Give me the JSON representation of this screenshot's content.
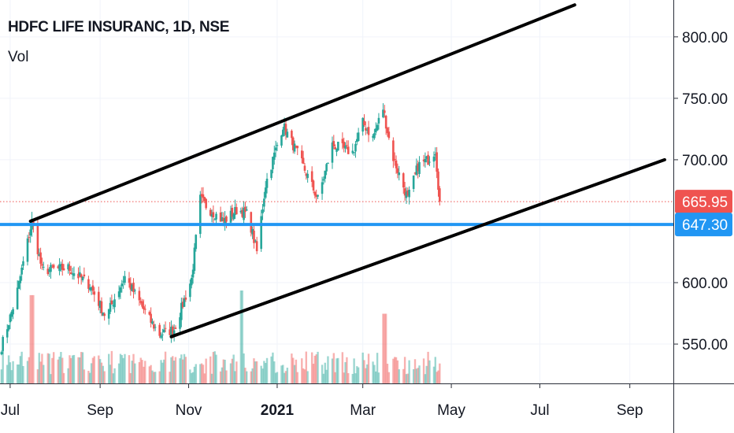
{
  "header": {
    "title": "HDFC LIFE INSURANC, 1D, NSE",
    "volume_label": "Vol"
  },
  "colors": {
    "up": "#26a69a",
    "down": "#ef5350",
    "grid": "#f0f3fa",
    "axis_text": "#131722",
    "last_price_badge": "#ef5350",
    "horizontal_line": "#2196f3",
    "trendline": "#000000"
  },
  "chart_data": {
    "type": "candlestick",
    "title": "HDFC LIFE INSURANC, 1D, NSE",
    "y_ticks": [
      "800.00",
      "750.00",
      "700.00",
      "600.00",
      "550.00"
    ],
    "y_range": [
      518,
      830
    ],
    "x_ticks": [
      "Jul",
      "Sep",
      "Nov",
      "2021",
      "Mar",
      "May",
      "Jul",
      "Sep"
    ],
    "x_tick_dates": [
      "2020-07-01",
      "2020-09-01",
      "2020-11-01",
      "2021-01-01",
      "2021-03-01",
      "2021-05-01",
      "2021-07-01",
      "2021-09-01"
    ],
    "x_range": [
      "2020-06-24",
      "2021-10-01"
    ],
    "last_price": {
      "value": 665.95,
      "label": "665.95"
    },
    "horizontal_level": {
      "value": 647.3,
      "label": "647.30"
    },
    "trendlines": [
      {
        "from": {
          "date": "2020-07-15",
          "value": 650
        },
        "to": {
          "date": "2021-07-25",
          "value": 826
        }
      },
      {
        "from": {
          "date": "2020-10-20",
          "value": 556
        },
        "to": {
          "date": "2021-09-25",
          "value": 700
        }
      }
    ],
    "price_path": [
      [
        "2020-06-25",
        548
      ],
      [
        "2020-07-05",
        588
      ],
      [
        "2020-07-16",
        650
      ],
      [
        "2020-07-23",
        610
      ],
      [
        "2020-08-10",
        612
      ],
      [
        "2020-08-25",
        598
      ],
      [
        "2020-09-05",
        572
      ],
      [
        "2020-09-18",
        605
      ],
      [
        "2020-10-05",
        570
      ],
      [
        "2020-10-12",
        558
      ],
      [
        "2020-10-22",
        562
      ],
      [
        "2020-11-03",
        603
      ],
      [
        "2020-11-09",
        668
      ],
      [
        "2020-11-15",
        660
      ],
      [
        "2020-11-25",
        650
      ],
      [
        "2020-12-05",
        660
      ],
      [
        "2020-12-12",
        655
      ],
      [
        "2020-12-18",
        625
      ],
      [
        "2020-12-24",
        680
      ],
      [
        "2021-01-05",
        728
      ],
      [
        "2021-01-15",
        705
      ],
      [
        "2021-01-29",
        668
      ],
      [
        "2021-02-08",
        712
      ],
      [
        "2021-02-22",
        706
      ],
      [
        "2021-03-01",
        730
      ],
      [
        "2021-03-08",
        718
      ],
      [
        "2021-03-15",
        742
      ],
      [
        "2021-03-21",
        705
      ],
      [
        "2021-04-01",
        668
      ],
      [
        "2021-04-08",
        695
      ],
      [
        "2021-04-15",
        700
      ],
      [
        "2021-04-20",
        708
      ],
      [
        "2021-04-23",
        666
      ]
    ],
    "volume_spikes": [
      {
        "date": "2020-07-16",
        "ratio": 0.95,
        "direction": "down"
      },
      {
        "date": "2020-12-07",
        "ratio": 1.0,
        "direction": "up"
      },
      {
        "date": "2021-03-16",
        "ratio": 0.75,
        "direction": "down"
      }
    ]
  }
}
